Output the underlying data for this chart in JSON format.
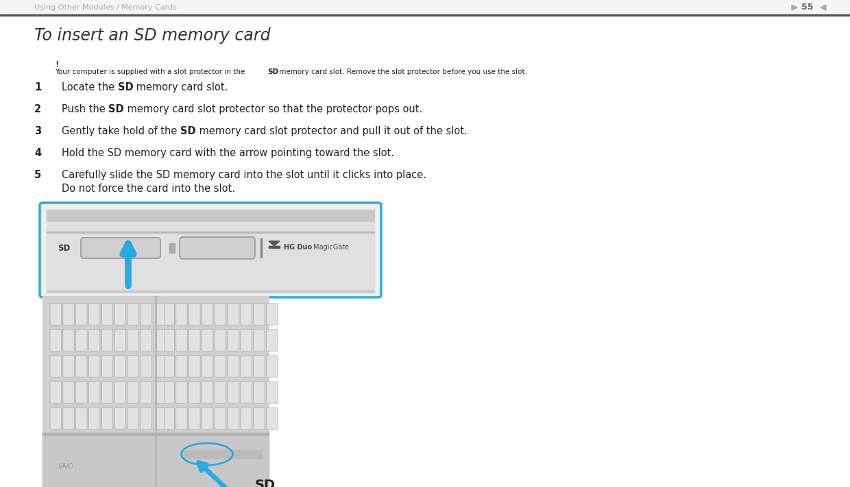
{
  "page_bg": "#ffffff",
  "header_text": "Using Other Modules / Memory Cards",
  "header_color": "#aaaaaa",
  "header_page_num": "55",
  "title": "To insert an SD memory card",
  "title_fontsize": 17,
  "title_color": "#333333",
  "warning_exclamation": "!",
  "warning_exclamation_color": "#cc0000",
  "warning_fontsize": 7.5,
  "step_fontsize": 10.5,
  "step_color": "#222222",
  "arrow_blue": "#29abe2",
  "box_border_color": "#29abe2",
  "header_line_color": "#555555",
  "header_top_color": "#f5f5f5",
  "slot_panel_bg": "#e2e2e2",
  "slot_panel_top": "#d0d0d0",
  "slot_dark": "#b8b8b8",
  "slot_mid": "#cccccc",
  "keyboard_bg": "#d5d5d5",
  "keyboard_key": "#e8e8e8",
  "keyboard_key_dark": "#c8c8c8"
}
